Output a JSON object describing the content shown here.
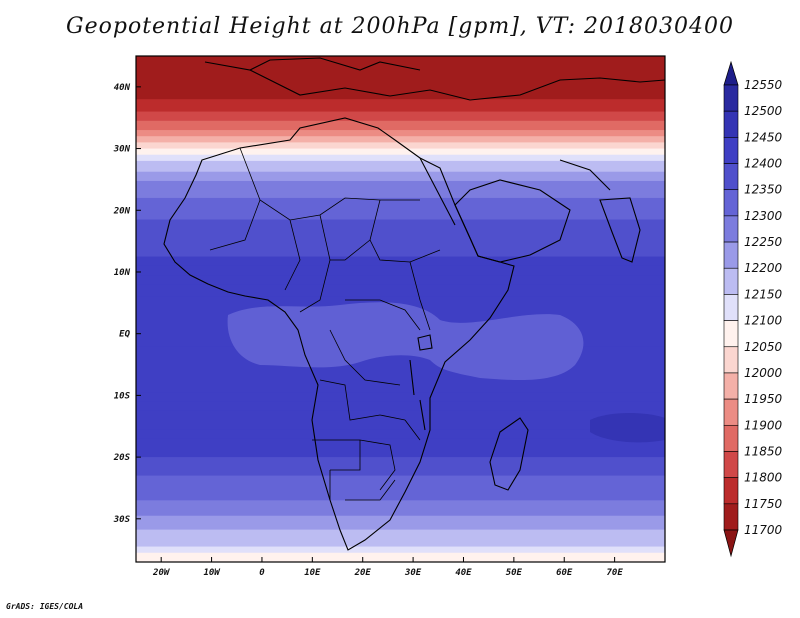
{
  "title": "Geopotential Height at 200hPa [gpm], VT: 2018030400",
  "credit": "GrADS: IGES/COLA",
  "chart_data": {
    "type": "heatmap",
    "variable": "Geopotential Height at 200hPa",
    "units": "gpm",
    "valid_time": "2018030400",
    "lon_range": [
      -25,
      80
    ],
    "lat_range": [
      -37,
      45
    ],
    "lon_ticks": [
      "20W",
      "10W",
      "0",
      "10E",
      "20E",
      "30E",
      "40E",
      "50E",
      "60E",
      "70E"
    ],
    "lon_tick_values": [
      -20,
      -10,
      0,
      10,
      20,
      30,
      40,
      50,
      60,
      70
    ],
    "lat_ticks": [
      "40N",
      "30N",
      "20N",
      "10N",
      "EQ",
      "10S",
      "20S",
      "30S"
    ],
    "lat_tick_values": [
      40,
      30,
      20,
      10,
      0,
      -10,
      -20,
      -30
    ],
    "colorbar_levels": [
      12550,
      12500,
      12450,
      12400,
      12350,
      12300,
      12250,
      12200,
      12150,
      12100,
      12050,
      12000,
      11950,
      11900,
      11850,
      11800,
      11750,
      11700
    ],
    "colorbar_colors": [
      "#1e1e8a",
      "#2a2aa0",
      "#3434b4",
      "#3f3fc4",
      "#5050cc",
      "#6464d6",
      "#7c7cde",
      "#9a9ae8",
      "#bcbcf2",
      "#e0e0fa",
      "#fff2ee",
      "#fbd6d0",
      "#f4b0a8",
      "#ec8c84",
      "#e06a64",
      "#d04848",
      "#bc2c2c",
      "#a01c1c",
      "#8a1414"
    ],
    "latitude_profile": [
      {
        "lat": 45,
        "value": 11700
      },
      {
        "lat": 40,
        "value": 11720
      },
      {
        "lat": 36,
        "value": 11790
      },
      {
        "lat": 33,
        "value": 11900
      },
      {
        "lat": 31,
        "value": 12000
      },
      {
        "lat": 29,
        "value": 12100
      },
      {
        "lat": 27,
        "value": 12180
      },
      {
        "lat": 24,
        "value": 12260
      },
      {
        "lat": 20,
        "value": 12330
      },
      {
        "lat": 14,
        "value": 12390
      },
      {
        "lat": 8,
        "value": 12430
      },
      {
        "lat": 0,
        "value": 12440
      },
      {
        "lat": -8,
        "value": 12440
      },
      {
        "lat": -14,
        "value": 12430
      },
      {
        "lat": -20,
        "value": 12400
      },
      {
        "lat": -24,
        "value": 12340
      },
      {
        "lat": -28,
        "value": 12280
      },
      {
        "lat": -31,
        "value": 12220
      },
      {
        "lat": -34,
        "value": 12160
      },
      {
        "lat": -36,
        "value": 12090
      },
      {
        "lat": -37,
        "value": 12060
      }
    ]
  }
}
